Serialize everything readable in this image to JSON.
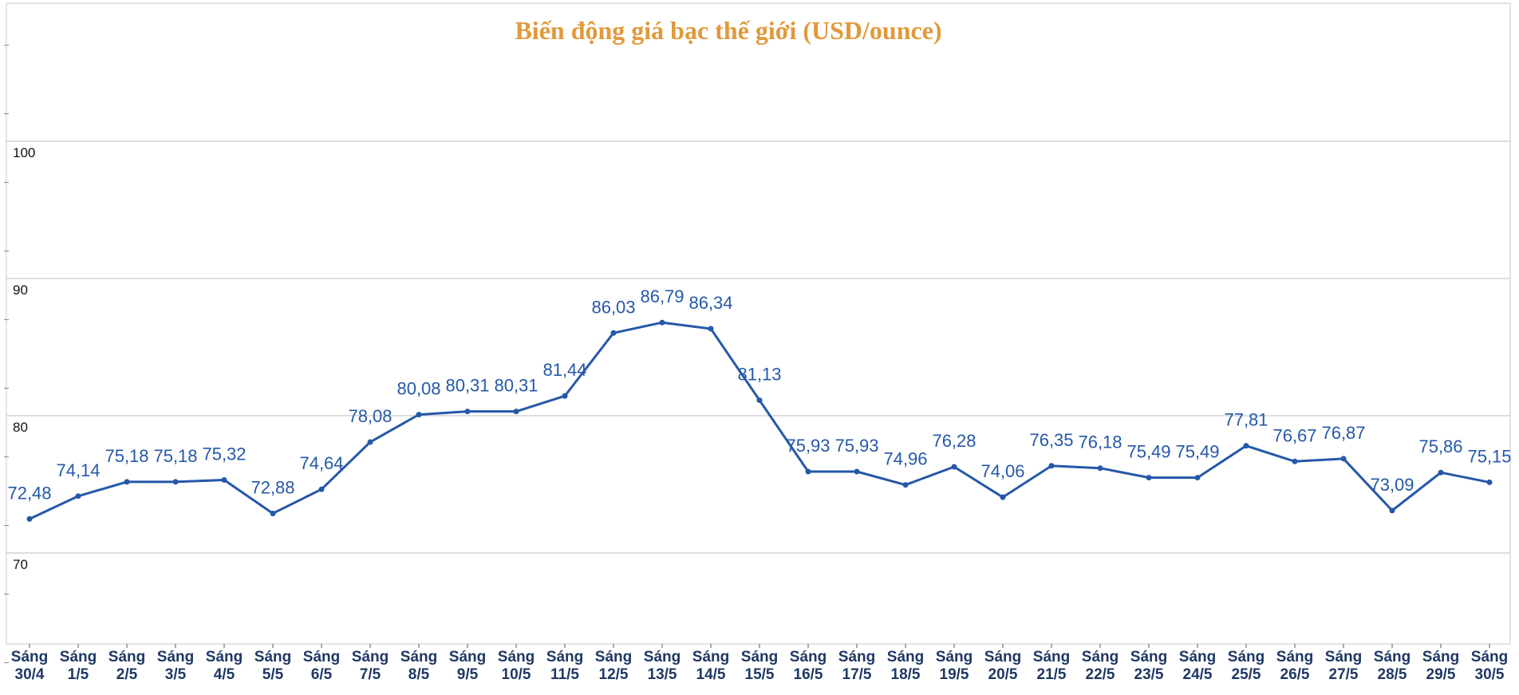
{
  "chart_data": {
    "type": "line",
    "title": "Biến động giá bạc thế giới (USD/ounce)",
    "xlabel": "",
    "ylabel": "",
    "ylim": [
      62,
      112
    ],
    "yticks": [
      {
        "value": 100,
        "label": "100"
      },
      {
        "value": 90,
        "label": "90"
      },
      {
        "value": 80,
        "label": "80"
      },
      {
        "value": 70,
        "label": "70"
      }
    ],
    "grid": true,
    "legend": "none",
    "categories": [
      {
        "line1": "Sáng",
        "line2": "30/4"
      },
      {
        "line1": "Sáng",
        "line2": "1/5"
      },
      {
        "line1": "Sáng",
        "line2": "2/5"
      },
      {
        "line1": "Sáng",
        "line2": "3/5"
      },
      {
        "line1": "Sáng",
        "line2": "4/5"
      },
      {
        "line1": "Sáng",
        "line2": "5/5"
      },
      {
        "line1": "Sáng",
        "line2": "6/5"
      },
      {
        "line1": "Sáng",
        "line2": "7/5"
      },
      {
        "line1": "Sáng",
        "line2": "8/5"
      },
      {
        "line1": "Sáng",
        "line2": "9/5"
      },
      {
        "line1": "Sáng",
        "line2": "10/5"
      },
      {
        "line1": "Sáng",
        "line2": "11/5"
      },
      {
        "line1": "Sáng",
        "line2": "12/5"
      },
      {
        "line1": "Sáng",
        "line2": "13/5"
      },
      {
        "line1": "Sáng",
        "line2": "14/5"
      },
      {
        "line1": "Sáng",
        "line2": "15/5"
      },
      {
        "line1": "Sáng",
        "line2": "16/5"
      },
      {
        "line1": "Sáng",
        "line2": "17/5"
      },
      {
        "line1": "Sáng",
        "line2": "18/5"
      },
      {
        "line1": "Sáng",
        "line2": "19/5"
      },
      {
        "line1": "Sáng",
        "line2": "20/5"
      },
      {
        "line1": "Sáng",
        "line2": "21/5"
      },
      {
        "line1": "Sáng",
        "line2": "22/5"
      },
      {
        "line1": "Sáng",
        "line2": "23/5"
      },
      {
        "line1": "Sáng",
        "line2": "24/5"
      },
      {
        "line1": "Sáng",
        "line2": "25/5"
      },
      {
        "line1": "Sáng",
        "line2": "26/5"
      },
      {
        "line1": "Sáng",
        "line2": "27/5"
      },
      {
        "line1": "Sáng",
        "line2": "28/5"
      },
      {
        "line1": "Sáng",
        "line2": "29/5"
      },
      {
        "line1": "Sáng",
        "line2": "30/5"
      }
    ],
    "series": [
      {
        "values": [
          72.48,
          74.14,
          75.18,
          75.18,
          75.32,
          72.88,
          74.64,
          78.08,
          80.08,
          80.31,
          80.31,
          81.44,
          86.03,
          86.79,
          86.34,
          81.13,
          75.93,
          75.93,
          74.96,
          76.28,
          74.06,
          76.35,
          76.18,
          75.49,
          75.49,
          77.81,
          76.67,
          76.87,
          73.09,
          75.86,
          75.15
        ],
        "labels": [
          "72,48",
          "74,14",
          "75,18",
          "75,18",
          "75,32",
          "72,88",
          "74,64",
          "78,08",
          "80,08",
          "80,31",
          "80,31",
          "81,44",
          "86,03",
          "86,79",
          "86,34",
          "81,13",
          "75,93",
          "75,93",
          "74,96",
          "76,28",
          "74,06",
          "76,35",
          "76,18",
          "75,49",
          "75,49",
          "77,81",
          "76,67",
          "76,87",
          "73,09",
          "75,86",
          "75,15"
        ]
      }
    ],
    "colors": {
      "title": "#e0993b",
      "line": "#2558a8",
      "label": "#2558a8",
      "grid": "#c9c9c9",
      "axis_text": "#1f3864"
    }
  }
}
